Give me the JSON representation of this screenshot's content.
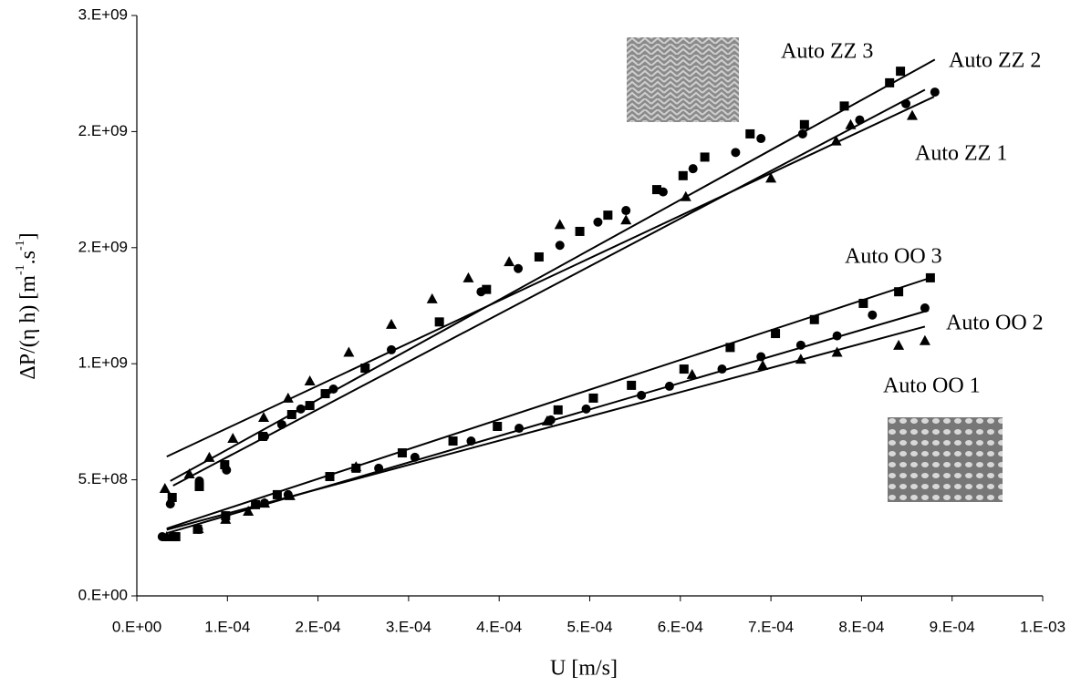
{
  "chart_data": {
    "type": "scatter",
    "x_label": "U [m/s]",
    "y_label": [
      "ΔP/(η h) [m",
      "-1",
      ".s",
      "-1",
      "]"
    ],
    "xlim": [
      0,
      0.001
    ],
    "xticks": [
      {
        "value": 0,
        "label": "0.E+00"
      },
      {
        "value": 0.0001,
        "label": "1.E-04"
      },
      {
        "value": 0.0002,
        "label": "2.E-04"
      },
      {
        "value": 0.0003,
        "label": "3.E-04"
      },
      {
        "value": 0.0004,
        "label": "4.E-04"
      },
      {
        "value": 0.0005,
        "label": "5.E-04"
      },
      {
        "value": 0.0006,
        "label": "6.E-04"
      },
      {
        "value": 0.0007,
        "label": "7.E-04"
      },
      {
        "value": 0.0008,
        "label": "8.E-04"
      },
      {
        "value": 0.0009,
        "label": "9.E-04"
      },
      {
        "value": 0.001,
        "label": "1.E-03"
      }
    ],
    "ylim": [
      0,
      2500000000
    ],
    "yticks": [
      {
        "value": 0,
        "label": "0.E+00"
      },
      {
        "value": 500000000,
        "label": "5.E+08"
      },
      {
        "value": 1000000000,
        "label": "1.E+09"
      },
      {
        "value": 1500000000,
        "label": "2.E+09"
      },
      {
        "value": 2000000000,
        "label": "2.E+09"
      },
      {
        "value": 2500000000,
        "label": "3.E+09"
      }
    ],
    "series": [
      {
        "name": "Auto ZZ 3",
        "color": "#000000",
        "marker": "square",
        "x": [
          3.9e-05,
          6.9e-05,
          9.7e-05,
          0.000139,
          0.000171,
          0.000191,
          0.000208,
          0.000252,
          0.000334,
          0.000386,
          0.000444,
          0.000489,
          0.00052,
          0.000574,
          0.000603,
          0.000627,
          0.000677,
          0.000737,
          0.000781,
          0.000831,
          0.000843
        ],
        "values": [
          424000000,
          471000000,
          565000000,
          687000000,
          781000000,
          820000000,
          871000000,
          981000000,
          1180000000,
          1320000000,
          1460000000,
          1570000000,
          1640000000,
          1750000000,
          1810000000,
          1890000000,
          1990000000,
          2030000000,
          2110000000,
          2210000000,
          2260000000
        ],
        "fit": {
          "x": [
            3.7e-05,
            0.000881
          ],
          "y": [
            495000000,
            2310000000
          ]
        }
      },
      {
        "name": "Auto ZZ 2",
        "color": "#000000",
        "marker": "circle",
        "x": [
          3.7e-05,
          6.9e-05,
          9.9e-05,
          0.000141,
          0.00016,
          0.000181,
          0.000217,
          0.000281,
          0.00038,
          0.000421,
          0.000467,
          0.000509,
          0.00054,
          0.000581,
          0.000614,
          0.000661,
          0.000689,
          0.000735,
          0.000798,
          0.000849,
          0.000881
        ],
        "values": [
          396000000,
          495000000,
          542000000,
          687000000,
          738000000,
          805000000,
          891000000,
          1060000000,
          1310000000,
          1410000000,
          1510000000,
          1610000000,
          1660000000,
          1740000000,
          1840000000,
          1910000000,
          1970000000,
          1990000000,
          2050000000,
          2120000000,
          2170000000
        ],
        "fit": {
          "x": [
            4e-05,
            0.00087
          ],
          "y": [
            475000000,
            2180000000
          ]
        }
      },
      {
        "name": "Auto ZZ 1",
        "color": "#000000",
        "marker": "triangle",
        "x": [
          3.1e-05,
          5.8e-05,
          8e-05,
          0.000106,
          0.00014,
          0.000167,
          0.000191,
          0.000234,
          0.000281,
          0.000326,
          0.000366,
          0.000411,
          0.000467,
          0.00054,
          0.000606,
          0.0007,
          0.000772,
          0.000788,
          0.000856
        ],
        "values": [
          463000000,
          526000000,
          597000000,
          679000000,
          769000000,
          852000000,
          926000000,
          1050000000,
          1170000000,
          1280000000,
          1370000000,
          1440000000,
          1600000000,
          1620000000,
          1720000000,
          1800000000,
          1960000000,
          2030000000,
          2070000000
        ],
        "fit": {
          "x": [
            3.3e-05,
            0.00088
          ],
          "y": [
            600000000,
            2150000000
          ]
        }
      },
      {
        "name": "Auto OO 3",
        "color": "#000000",
        "marker": "square",
        "x": [
          4.3e-05,
          6.7e-05,
          9.8e-05,
          0.000131,
          0.000155,
          0.000213,
          0.000242,
          0.000293,
          0.000349,
          0.000398,
          0.000465,
          0.000504,
          0.000546,
          0.000604,
          0.000655,
          0.000705,
          0.000748,
          0.000802,
          0.000841,
          0.000876
        ],
        "values": [
          255000000,
          287000000,
          345000000,
          393000000,
          436000000,
          514000000,
          550000000,
          616000000,
          667000000,
          730000000,
          801000000,
          852000000,
          907000000,
          977000000,
          1070000000,
          1130000000,
          1190000000,
          1260000000,
          1310000000,
          1370000000
        ],
        "fit": {
          "x": [
            3.3e-05,
            0.000876
          ],
          "y": [
            290000000,
            1370000000
          ]
        }
      },
      {
        "name": "Auto OO 2",
        "color": "#000000",
        "marker": "circle",
        "x": [
          2.8e-05,
          3.9e-05,
          6.8e-05,
          9.8e-05,
          0.000141,
          0.000167,
          0.000267,
          0.000307,
          0.000369,
          0.000422,
          0.000457,
          0.000496,
          0.000557,
          0.000588,
          0.000646,
          0.000689,
          0.000733,
          0.000773,
          0.000812,
          0.00087
        ],
        "values": [
          255000000,
          255000000,
          287000000,
          345000000,
          400000000,
          436000000,
          550000000,
          597000000,
          667000000,
          722000000,
          758000000,
          805000000,
          864000000,
          903000000,
          977000000,
          1030000000,
          1080000000,
          1120000000,
          1210000000,
          1240000000
        ],
        "fit": {
          "x": [
            3.3e-05,
            0.000874
          ],
          "y": [
            270000000,
            1230000000
          ]
        }
      },
      {
        "name": "Auto OO 1",
        "color": "#000000",
        "marker": "triangle",
        "x": [
          3.3e-05,
          6.8e-05,
          9.8e-05,
          0.000123,
          0.000141,
          0.000169,
          0.000242,
          0.000453,
          0.000613,
          0.000691,
          0.000733,
          0.000773,
          0.000841,
          0.00087
        ],
        "values": [
          255000000,
          290000000,
          330000000,
          365000000,
          400000000,
          432000000,
          557000000,
          754000000,
          954000000,
          993000000,
          1020000000,
          1050000000,
          1080000000,
          1100000000
        ],
        "fit": {
          "x": [
            3.3e-05,
            0.00087
          ],
          "y": [
            285000000,
            1160000000
          ]
        }
      }
    ]
  }
}
